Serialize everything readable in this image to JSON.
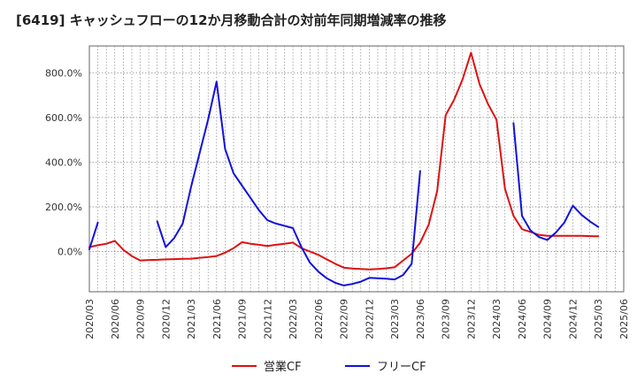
{
  "title": "[6419]  キャッシュフローの12か月移動合計の対前年同期増減率の推移",
  "chart_data": {
    "type": "line",
    "ylim": [
      -180,
      920
    ],
    "yticks": [
      0,
      200,
      400,
      600,
      800
    ],
    "ytick_labels": [
      "0.0%",
      "200.0%",
      "400.0%",
      "600.0%",
      "800.0%"
    ],
    "x_start": "2020/03",
    "x_end": "2025/06",
    "xtick_labels": [
      "2020/03",
      "2020/06",
      "2020/09",
      "2020/12",
      "2021/03",
      "2021/06",
      "2021/09",
      "2021/12",
      "2022/03",
      "2022/06",
      "2022/09",
      "2022/12",
      "2023/03",
      "2023/06",
      "2023/09",
      "2023/12",
      "2024/03",
      "2024/06",
      "2024/09",
      "2024/12",
      "2025/03",
      "2025/06"
    ],
    "grid": true,
    "legend_position": "bottom-center",
    "series": [
      {
        "name": "営業CF",
        "color": "#dd1111",
        "points": [
          [
            "2020/03",
            20
          ],
          [
            "2020/04",
            28
          ],
          [
            "2020/05",
            35
          ],
          [
            "2020/06",
            48
          ],
          [
            "2020/07",
            8
          ],
          [
            "2020/08",
            -20
          ],
          [
            "2020/09",
            -40
          ],
          [
            "2020/10",
            -38
          ],
          [
            "2020/11",
            -37
          ],
          [
            "2020/12",
            -35
          ],
          [
            "2021/01",
            -34
          ],
          [
            "2021/02",
            -33
          ],
          [
            "2021/03",
            -32
          ],
          [
            "2021/04",
            -28
          ],
          [
            "2021/05",
            -25
          ],
          [
            "2021/06",
            -20
          ],
          [
            "2021/07",
            -5
          ],
          [
            "2021/08",
            15
          ],
          [
            "2021/09",
            42
          ],
          [
            "2021/10",
            35
          ],
          [
            "2021/11",
            30
          ],
          [
            "2021/12",
            25
          ],
          [
            "2022/01",
            30
          ],
          [
            "2022/02",
            35
          ],
          [
            "2022/03",
            40
          ],
          [
            "2022/04",
            15
          ],
          [
            "2022/05",
            0
          ],
          [
            "2022/06",
            -15
          ],
          [
            "2022/07",
            -35
          ],
          [
            "2022/08",
            -55
          ],
          [
            "2022/09",
            -72
          ],
          [
            "2022/10",
            -76
          ],
          [
            "2022/11",
            -78
          ],
          [
            "2022/12",
            -80
          ],
          [
            "2023/01",
            -78
          ],
          [
            "2023/02",
            -75
          ],
          [
            "2023/03",
            -70
          ],
          [
            "2023/04",
            -40
          ],
          [
            "2023/05",
            -10
          ],
          [
            "2023/06",
            40
          ],
          [
            "2023/07",
            120
          ],
          [
            "2023/08",
            270
          ],
          [
            "2023/09",
            610
          ],
          [
            "2023/10",
            680
          ],
          [
            "2023/11",
            770
          ],
          [
            "2023/12",
            890
          ],
          [
            "2024/01",
            750
          ],
          [
            "2024/02",
            660
          ],
          [
            "2024/03",
            590
          ],
          [
            "2024/04",
            280
          ],
          [
            "2024/05",
            160
          ],
          [
            "2024/06",
            100
          ],
          [
            "2024/07",
            88
          ],
          [
            "2024/08",
            75
          ],
          [
            "2024/09",
            70
          ],
          [
            "2024/10",
            70
          ],
          [
            "2024/11",
            70
          ],
          [
            "2024/12",
            70
          ],
          [
            "2025/01",
            70
          ],
          [
            "2025/02",
            69
          ],
          [
            "2025/03",
            68
          ]
        ]
      },
      {
        "name": "フリーCF",
        "color": "#1111dd",
        "points": [
          [
            "2020/03",
            10
          ],
          [
            "2020/04",
            130
          ],
          null,
          [
            "2020/11",
            135
          ],
          [
            "2020/12",
            20
          ],
          [
            "2021/01",
            60
          ],
          [
            "2021/02",
            125
          ],
          [
            "2021/03",
            290
          ],
          [
            "2021/04",
            440
          ],
          [
            "2021/05",
            590
          ],
          [
            "2021/06",
            760
          ],
          [
            "2021/07",
            460
          ],
          [
            "2021/08",
            350
          ],
          [
            "2021/09",
            295
          ],
          [
            "2021/10",
            240
          ],
          [
            "2021/11",
            185
          ],
          [
            "2021/12",
            140
          ],
          [
            "2022/01",
            125
          ],
          [
            "2022/02",
            115
          ],
          [
            "2022/03",
            105
          ],
          [
            "2022/04",
            20
          ],
          [
            "2022/05",
            -50
          ],
          [
            "2022/06",
            -90
          ],
          [
            "2022/07",
            -120
          ],
          [
            "2022/08",
            -140
          ],
          [
            "2022/09",
            -152
          ],
          [
            "2022/10",
            -145
          ],
          [
            "2022/11",
            -135
          ],
          [
            "2022/12",
            -118
          ],
          [
            "2023/01",
            -120
          ],
          [
            "2023/02",
            -122
          ],
          [
            "2023/03",
            -125
          ],
          [
            "2023/04",
            -105
          ],
          [
            "2023/05",
            -55
          ],
          [
            "2023/06",
            360
          ],
          null,
          [
            "2024/05",
            575
          ],
          [
            "2024/06",
            160
          ],
          [
            "2024/07",
            95
          ],
          [
            "2024/08",
            65
          ],
          [
            "2024/09",
            52
          ],
          [
            "2024/10",
            85
          ],
          [
            "2024/11",
            130
          ],
          [
            "2024/12",
            205
          ],
          [
            "2025/01",
            165
          ],
          [
            "2025/02",
            135
          ],
          [
            "2025/03",
            110
          ]
        ]
      }
    ]
  }
}
